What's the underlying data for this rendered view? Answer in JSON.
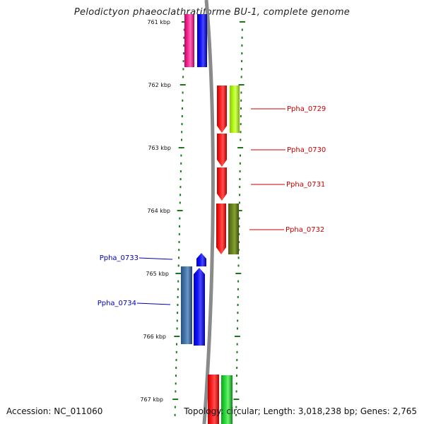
{
  "title": "Pelodictyon phaeoclathratiforme BU-1, complete genome",
  "footer": {
    "accession": "Accession: NC_011060",
    "topology": "Topology: circular; Length: 3,018,238 bp; Genes: 2,765"
  },
  "colors": {
    "tick": "#1a7a1a",
    "backbone": "#8a8a8a",
    "forward_label": "#cc0000",
    "reverse_label": "#0000bb"
  },
  "scale": {
    "ticks": [
      {
        "kbp": 761,
        "label": "761 kbp"
      },
      {
        "kbp": 762,
        "label": "762 kbp"
      },
      {
        "kbp": 763,
        "label": "763 kbp"
      },
      {
        "kbp": 764,
        "label": "764 kbp"
      },
      {
        "kbp": 765,
        "label": "765 kbp"
      },
      {
        "kbp": 766,
        "label": "766 kbp"
      },
      {
        "kbp": 767,
        "label": "767 kbp"
      }
    ]
  },
  "genes": [
    {
      "label": "Ppha_0729",
      "strand": "forward",
      "color": "#ff0000"
    },
    {
      "label": "Ppha_0730",
      "strand": "forward",
      "color": "#ff0000"
    },
    {
      "label": "Ppha_0731",
      "strand": "forward",
      "color": "#ff0000"
    },
    {
      "label": "Ppha_0732",
      "strand": "forward",
      "color": "#ff0000"
    },
    {
      "label": "Ppha_0733",
      "strand": "reverse",
      "color": "#0000ff"
    },
    {
      "label": "Ppha_0734",
      "strand": "reverse",
      "color": "#0000ff"
    }
  ]
}
